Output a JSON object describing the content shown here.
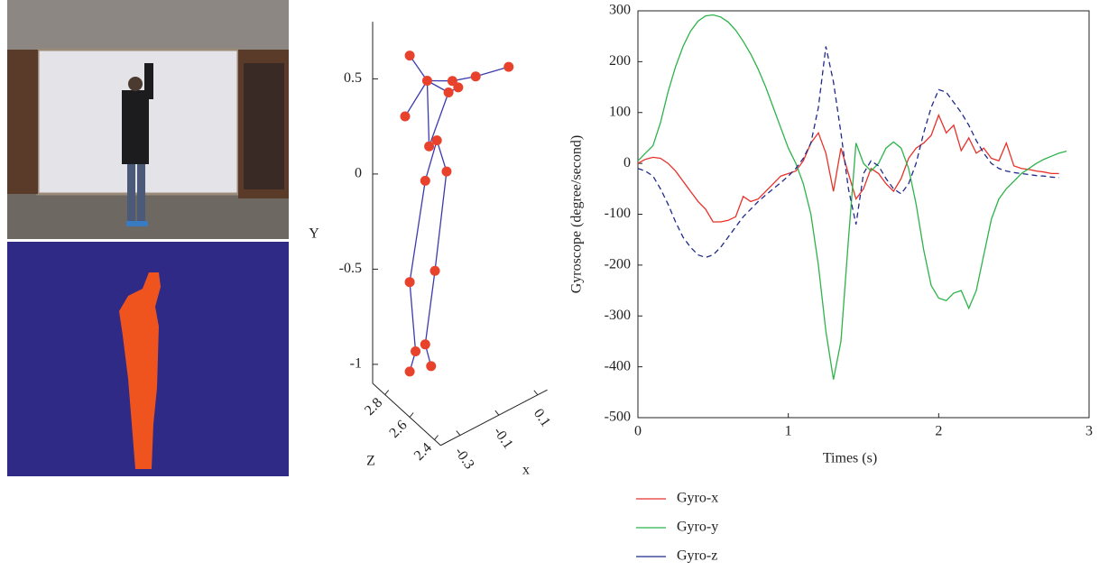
{
  "chart_data": [
    {
      "type": "scatter3d",
      "x": [
        -0.4,
        -0.31,
        -0.18,
        -0.15,
        -0.2,
        -0.06,
        0.11,
        -0.36,
        -0.26,
        -0.3,
        -0.21,
        -0.32,
        -0.27,
        -0.4,
        -0.32,
        -0.37,
        -0.29,
        -0.4
      ],
      "y": [
        0.8,
        0.62,
        0.55,
        0.5,
        0.5,
        0.51,
        0.47,
        0.4,
        0.28,
        0.27,
        0.09,
        0.1,
        -0.4,
        -0.39,
        -0.76,
        -0.77,
        -0.89,
        -0.86
      ],
      "z": [
        2.6,
        2.6,
        2.6,
        2.6,
        2.6,
        2.6,
        2.6,
        2.7,
        2.6,
        2.6,
        2.6,
        2.6,
        2.6,
        2.6,
        2.6,
        2.6,
        2.6,
        2.6
      ],
      "xlim": [
        -0.4,
        0.15
      ],
      "ylim": [
        -1.1,
        0.8
      ],
      "zlim": [
        2.35,
        2.9
      ],
      "xticks": [
        -0.3,
        -0.1,
        0.1
      ],
      "yticks": [
        -1,
        -0.5,
        0,
        0.5
      ],
      "zticks": [
        2.4,
        2.6,
        2.8
      ],
      "xlabel": "x",
      "ylabel": "Y",
      "zlabel": "Z",
      "color": "#e8412c",
      "line_color": "#3b3bb0"
    },
    {
      "type": "line",
      "x": [
        0,
        0.05,
        0.1,
        0.15,
        0.2,
        0.25,
        0.3,
        0.35,
        0.4,
        0.45,
        0.5,
        0.55,
        0.6,
        0.65,
        0.7,
        0.75,
        0.8,
        0.85,
        0.9,
        0.95,
        1,
        1.05,
        1.1,
        1.15,
        1.2,
        1.25,
        1.3,
        1.35,
        1.4,
        1.45,
        1.5,
        1.55,
        1.6,
        1.65,
        1.7,
        1.75,
        1.8,
        1.85,
        1.9,
        1.95,
        2,
        2.05,
        2.1,
        2.15,
        2.2,
        2.25,
        2.3,
        2.35,
        2.4,
        2.45,
        2.5,
        2.55,
        2.6,
        2.65,
        2.7,
        2.75,
        2.8,
        2.85
      ],
      "xlim": [
        0,
        3
      ],
      "xticks": [
        0,
        1,
        2,
        3
      ],
      "ylim": [
        -500,
        300
      ],
      "yticks": [
        -500,
        -400,
        -300,
        -200,
        -100,
        0,
        100,
        200,
        300
      ],
      "xlabel": "Times (s)",
      "ylabel": "Gyroscope (degree/second)",
      "legend": "bottom",
      "series": [
        {
          "name": "Gyro-x",
          "color": "#e8312a",
          "line_style": "solid",
          "values": [
            0,
            8,
            12,
            10,
            0,
            -15,
            -35,
            -55,
            -75,
            -90,
            -115,
            -115,
            -112,
            -105,
            -65,
            -75,
            -70,
            -55,
            -40,
            -25,
            -20,
            -15,
            5,
            40,
            60,
            20,
            -55,
            30,
            -20,
            -70,
            -50,
            -10,
            -20,
            -40,
            -55,
            -30,
            10,
            30,
            40,
            55,
            95,
            60,
            75,
            25,
            50,
            20,
            30,
            10,
            5,
            40,
            -5,
            -10,
            -12,
            -15,
            -17,
            -20,
            -20,
            null
          ]
        },
        {
          "name": "Gyro-y",
          "color": "#2db34a",
          "line_style": "solid",
          "values": [
            5,
            20,
            35,
            80,
            140,
            190,
            230,
            260,
            280,
            290,
            292,
            288,
            278,
            262,
            240,
            215,
            185,
            150,
            110,
            70,
            30,
            0,
            -40,
            -100,
            -200,
            -330,
            -425,
            -350,
            -150,
            40,
            0,
            -15,
            0,
            30,
            42,
            30,
            -10,
            -80,
            -170,
            -240,
            -265,
            -270,
            -255,
            -250,
            -285,
            -250,
            -180,
            -110,
            -70,
            -50,
            -35,
            -20,
            -10,
            0,
            8,
            14,
            20,
            24
          ]
        },
        {
          "name": "Gyro-z",
          "color": "#1f2a8a",
          "line_style": "dashed",
          "values": [
            -10,
            -15,
            -25,
            -50,
            -80,
            -115,
            -145,
            -165,
            -180,
            -185,
            -180,
            -165,
            -145,
            -125,
            -105,
            -90,
            -75,
            -62,
            -50,
            -38,
            -25,
            -10,
            10,
            40,
            110,
            230,
            160,
            60,
            -50,
            -120,
            -20,
            5,
            -5,
            -30,
            -50,
            -60,
            -40,
            0,
            60,
            110,
            145,
            140,
            120,
            100,
            75,
            45,
            20,
            0,
            -10,
            -15,
            -18,
            -20,
            -22,
            -24,
            -25,
            -27,
            -28,
            null
          ]
        }
      ]
    }
  ]
}
